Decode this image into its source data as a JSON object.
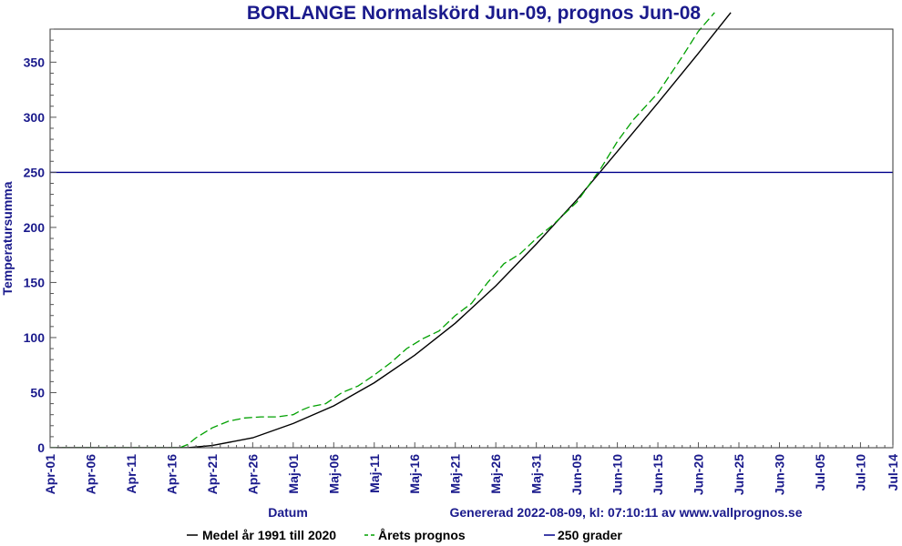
{
  "chart_data": {
    "type": "line",
    "title": "BORLANGE Normalskörd Jun-09, prognos Jun-08",
    "xlabel": "Datum",
    "ylabel": "Temperatursumma",
    "footer": "Genererad 2022-08-09, kl: 07:10:11 av www.vallprognos.se",
    "x_start": "2022-04-01",
    "x_end": "2022-07-14",
    "x_tick_labels": [
      "Apr-01",
      "Apr-06",
      "Apr-11",
      "Apr-16",
      "Apr-21",
      "Apr-26",
      "Maj-01",
      "Maj-06",
      "Maj-11",
      "Maj-16",
      "Maj-21",
      "Maj-26",
      "Maj-31",
      "Jun-05",
      "Jun-10",
      "Jun-15",
      "Jun-20",
      "Jun-25",
      "Jun-30",
      "Jul-05",
      "Jul-10",
      "Jul-14"
    ],
    "ylim": [
      0,
      380
    ],
    "y_ticks": [
      0,
      50,
      100,
      150,
      200,
      250,
      300,
      350
    ],
    "grid": false,
    "legend_position": "bottom",
    "series": [
      {
        "name": "Medel år 1991 till 2020",
        "color": "#000000",
        "style": "solid",
        "points": [
          [
            "2022-04-01",
            0
          ],
          [
            "2022-04-16",
            0
          ],
          [
            "2022-04-18",
            0
          ],
          [
            "2022-04-21",
            2
          ],
          [
            "2022-04-26",
            9
          ],
          [
            "2022-05-01",
            22
          ],
          [
            "2022-05-06",
            38
          ],
          [
            "2022-05-11",
            59
          ],
          [
            "2022-05-16",
            84
          ],
          [
            "2022-05-21",
            113
          ],
          [
            "2022-05-26",
            147
          ],
          [
            "2022-05-31",
            185
          ],
          [
            "2022-06-05",
            225
          ],
          [
            "2022-06-10",
            269
          ],
          [
            "2022-06-15",
            313
          ],
          [
            "2022-06-20",
            358
          ],
          [
            "2022-06-24",
            395
          ]
        ]
      },
      {
        "name": "Årets prognos",
        "color": "#00a000",
        "style": "dashed",
        "points": [
          [
            "2022-04-01",
            0
          ],
          [
            "2022-04-16",
            0
          ],
          [
            "2022-04-17",
            0
          ],
          [
            "2022-04-18",
            3
          ],
          [
            "2022-04-19",
            9
          ],
          [
            "2022-04-21",
            18
          ],
          [
            "2022-04-23",
            24
          ],
          [
            "2022-04-25",
            27
          ],
          [
            "2022-04-27",
            28
          ],
          [
            "2022-04-29",
            28
          ],
          [
            "2022-05-01",
            30
          ],
          [
            "2022-05-02",
            34
          ],
          [
            "2022-05-03",
            37
          ],
          [
            "2022-05-05",
            40
          ],
          [
            "2022-05-07",
            50
          ],
          [
            "2022-05-09",
            56
          ],
          [
            "2022-05-11",
            66
          ],
          [
            "2022-05-13",
            77
          ],
          [
            "2022-05-15",
            90
          ],
          [
            "2022-05-17",
            99
          ],
          [
            "2022-05-19",
            106
          ],
          [
            "2022-05-21",
            120
          ],
          [
            "2022-05-23",
            131
          ],
          [
            "2022-05-25",
            150
          ],
          [
            "2022-05-27",
            167
          ],
          [
            "2022-05-29",
            176
          ],
          [
            "2022-05-31",
            190
          ],
          [
            "2022-06-02",
            202
          ],
          [
            "2022-06-05",
            223
          ],
          [
            "2022-06-08",
            254
          ],
          [
            "2022-06-10",
            278
          ],
          [
            "2022-06-12",
            298
          ],
          [
            "2022-06-15",
            322
          ],
          [
            "2022-06-18",
            355
          ],
          [
            "2022-06-20",
            378
          ],
          [
            "2022-06-22",
            395
          ]
        ]
      },
      {
        "name": "250 grader",
        "color": "#00008b",
        "style": "solid",
        "points": [
          [
            "2022-04-01",
            250
          ],
          [
            "2022-07-14",
            250
          ]
        ]
      }
    ]
  }
}
